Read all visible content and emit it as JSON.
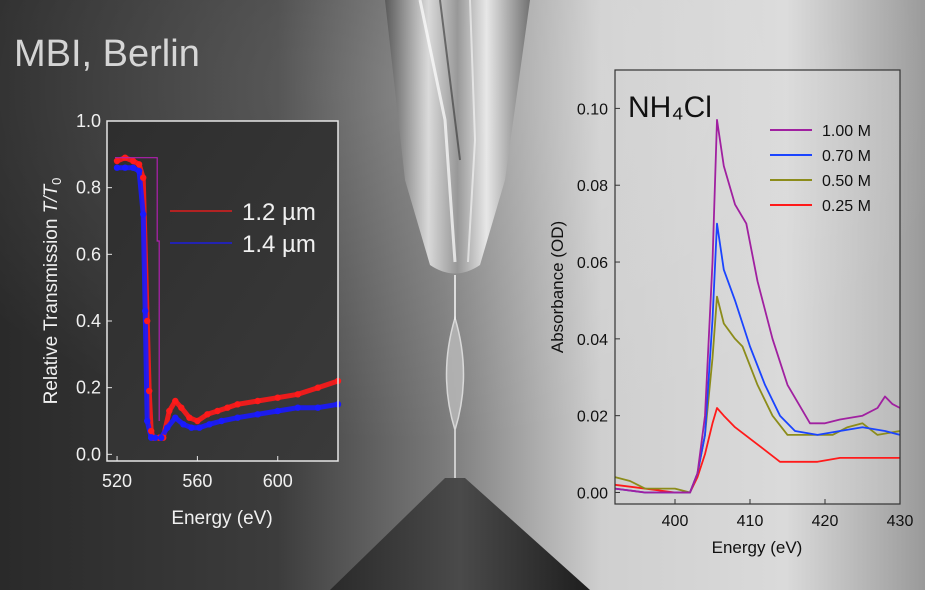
{
  "header": {
    "title": "MBI, Berlin"
  },
  "chart_data": [
    {
      "type": "scatter",
      "xlabel": "Energy (eV)",
      "ylabel_main": "Relative Transmission ",
      "ylabel_italic": "T/T",
      "ylabel_sub": "0",
      "xlim": [
        515,
        630
      ],
      "ylim": [
        -0.02,
        1.0
      ],
      "x_ticks": [
        "520",
        "560",
        "600"
      ],
      "y_ticks": [
        "0.0",
        "0.2",
        "0.4",
        "0.6",
        "0.8",
        "1.0"
      ],
      "legend_position": "right",
      "series": [
        {
          "name": "1.2 µm",
          "color": "#ff1a1a",
          "points": [
            [
              520,
              0.88
            ],
            [
              524,
              0.89
            ],
            [
              528,
              0.88
            ],
            [
              531,
              0.87
            ],
            [
              533,
              0.83
            ],
            [
              535,
              0.4
            ],
            [
              536,
              0.19
            ],
            [
              537,
              0.07
            ],
            [
              538,
              0.05
            ],
            [
              541,
              0.05
            ],
            [
              543,
              0.05
            ],
            [
              546,
              0.13
            ],
            [
              549,
              0.16
            ],
            [
              552,
              0.14
            ],
            [
              556,
              0.11
            ],
            [
              560,
              0.1
            ],
            [
              565,
              0.12
            ],
            [
              570,
              0.13
            ],
            [
              575,
              0.14
            ],
            [
              580,
              0.15
            ],
            [
              590,
              0.16
            ],
            [
              600,
              0.17
            ],
            [
              610,
              0.18
            ],
            [
              620,
              0.2
            ],
            [
              630,
              0.22
            ]
          ]
        },
        {
          "name": "1.4 µm",
          "color": "#1a1aff",
          "points": [
            [
              520,
              0.86
            ],
            [
              524,
              0.86
            ],
            [
              528,
              0.86
            ],
            [
              531,
              0.85
            ],
            [
              533,
              0.72
            ],
            [
              534,
              0.43
            ],
            [
              535,
              0.1
            ],
            [
              537,
              0.05
            ],
            [
              539,
              0.05
            ],
            [
              542,
              0.05
            ],
            [
              545,
              0.08
            ],
            [
              549,
              0.11
            ],
            [
              553,
              0.09
            ],
            [
              557,
              0.08
            ],
            [
              561,
              0.08
            ],
            [
              566,
              0.09
            ],
            [
              572,
              0.1
            ],
            [
              580,
              0.11
            ],
            [
              590,
              0.12
            ],
            [
              600,
              0.13
            ],
            [
              610,
              0.14
            ],
            [
              620,
              0.14
            ],
            [
              630,
              0.15
            ]
          ]
        }
      ]
    },
    {
      "type": "line",
      "annotation": "NH₄Cl",
      "xlabel": "Energy (eV)",
      "ylabel": "Absorbance (OD)",
      "xlim": [
        392,
        430
      ],
      "ylim": [
        -0.003,
        0.11
      ],
      "x_ticks": [
        "400",
        "410",
        "420",
        "430"
      ],
      "y_ticks": [
        "0.00",
        "0.02",
        "0.04",
        "0.06",
        "0.08",
        "0.10"
      ],
      "legend_position": "top-right",
      "series": [
        {
          "name": "1.00 M",
          "color": "#a020a0",
          "points": [
            [
              392,
              0.001
            ],
            [
              396,
              0.0
            ],
            [
              400,
              0.0
            ],
            [
              402,
              0.0
            ],
            [
              403,
              0.005
            ],
            [
              404,
              0.02
            ],
            [
              405,
              0.06
            ],
            [
              405.6,
              0.097
            ],
            [
              406.5,
              0.085
            ],
            [
              408,
              0.075
            ],
            [
              409.5,
              0.07
            ],
            [
              411,
              0.055
            ],
            [
              413,
              0.04
            ],
            [
              415,
              0.028
            ],
            [
              418,
              0.018
            ],
            [
              420,
              0.018
            ],
            [
              422,
              0.019
            ],
            [
              425,
              0.02
            ],
            [
              427,
              0.022
            ],
            [
              428,
              0.025
            ],
            [
              429,
              0.023
            ],
            [
              430,
              0.022
            ]
          ]
        },
        {
          "name": "0.70 M",
          "color": "#1a44ff",
          "points": [
            [
              392,
              0.001
            ],
            [
              396,
              0.0
            ],
            [
              400,
              0.0
            ],
            [
              402,
              0.0
            ],
            [
              403,
              0.005
            ],
            [
              404,
              0.015
            ],
            [
              405,
              0.045
            ],
            [
              405.6,
              0.07
            ],
            [
              406.5,
              0.058
            ],
            [
              408,
              0.05
            ],
            [
              410,
              0.038
            ],
            [
              412,
              0.028
            ],
            [
              414,
              0.02
            ],
            [
              416,
              0.016
            ],
            [
              419,
              0.015
            ],
            [
              422,
              0.016
            ],
            [
              425,
              0.017
            ],
            [
              428,
              0.016
            ],
            [
              430,
              0.015
            ]
          ]
        },
        {
          "name": "0.50 M",
          "color": "#8c8c1a",
          "points": [
            [
              392,
              0.004
            ],
            [
              394,
              0.003
            ],
            [
              396,
              0.001
            ],
            [
              400,
              0.001
            ],
            [
              402,
              0.0
            ],
            [
              403,
              0.005
            ],
            [
              404,
              0.015
            ],
            [
              405,
              0.035
            ],
            [
              405.6,
              0.051
            ],
            [
              406.5,
              0.044
            ],
            [
              408,
              0.04
            ],
            [
              409,
              0.038
            ],
            [
              411,
              0.028
            ],
            [
              413,
              0.02
            ],
            [
              415,
              0.015
            ],
            [
              418,
              0.015
            ],
            [
              421,
              0.015
            ],
            [
              423,
              0.017
            ],
            [
              425,
              0.018
            ],
            [
              427,
              0.015
            ],
            [
              430,
              0.016
            ]
          ]
        },
        {
          "name": "0.25 M",
          "color": "#ff1a1a",
          "points": [
            [
              392,
              0.002
            ],
            [
              396,
              0.001
            ],
            [
              400,
              0.0
            ],
            [
              402,
              0.0
            ],
            [
              403,
              0.004
            ],
            [
              404,
              0.01
            ],
            [
              405,
              0.018
            ],
            [
              405.6,
              0.022
            ],
            [
              406.5,
              0.02
            ],
            [
              408,
              0.017
            ],
            [
              410,
              0.014
            ],
            [
              412,
              0.011
            ],
            [
              414,
              0.008
            ],
            [
              416,
              0.008
            ],
            [
              419,
              0.008
            ],
            [
              422,
              0.009
            ],
            [
              425,
              0.009
            ],
            [
              428,
              0.009
            ],
            [
              430,
              0.009
            ]
          ]
        }
      ]
    }
  ]
}
